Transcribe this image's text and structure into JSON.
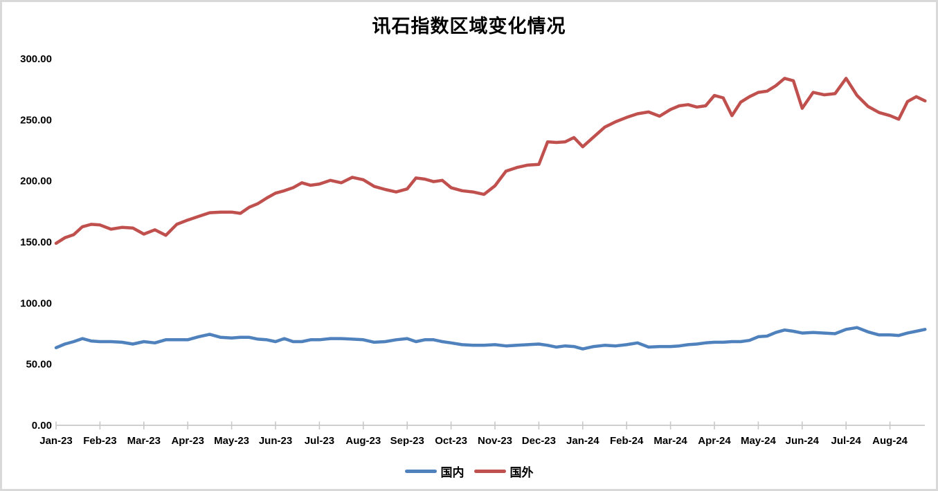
{
  "chart_data": {
    "type": "line",
    "title": "讯石指数区域变化情况",
    "legend_position": "bottom",
    "grid": false,
    "axis_color": "#c8c8c8",
    "y_axis": {
      "min": 0,
      "max": 300,
      "step": 50,
      "tick_labels": [
        "0.00",
        "50.00",
        "100.00",
        "150.00",
        "200.00",
        "250.00",
        "300.00"
      ]
    },
    "x_axis": {
      "tick_labels": [
        "Jan-23",
        "Feb-23",
        "Mar-23",
        "Apr-23",
        "May-23",
        "Jun-23",
        "Jul-23",
        "Aug-23",
        "Sep-23",
        "Oct-23",
        "Nov-23",
        "Dec-23",
        "Jan-24",
        "Feb-24",
        "Mar-24",
        "Apr-24",
        "May-24",
        "Jun-24",
        "Jul-24",
        "Aug-24"
      ],
      "unit": "month"
    },
    "x": [
      0,
      0.2,
      0.4,
      0.6,
      0.8,
      1,
      1.25,
      1.5,
      1.75,
      2,
      2.25,
      2.5,
      2.75,
      3,
      3.25,
      3.5,
      3.75,
      4,
      4.2,
      4.4,
      4.6,
      4.8,
      5,
      5.2,
      5.4,
      5.6,
      5.8,
      6,
      6.25,
      6.5,
      6.75,
      7,
      7.25,
      7.5,
      7.75,
      8,
      8.2,
      8.4,
      8.6,
      8.8,
      9,
      9.25,
      9.5,
      9.75,
      10,
      10.25,
      10.5,
      10.75,
      11,
      11.2,
      11.4,
      11.6,
      11.8,
      12,
      12.25,
      12.5,
      12.75,
      13,
      13.25,
      13.5,
      13.75,
      14,
      14.2,
      14.4,
      14.6,
      14.8,
      15,
      15.2,
      15.4,
      15.6,
      15.8,
      16,
      16.2,
      16.4,
      16.6,
      16.8,
      17,
      17.25,
      17.5,
      17.75,
      18,
      18.25,
      18.5,
      18.75,
      19,
      19.2,
      19.4,
      19.6,
      19.8
    ],
    "series": [
      {
        "name": "国内",
        "color": "#4f81bd",
        "values": [
          63.5,
          66.5,
          68.5,
          71.0,
          69.0,
          68.5,
          68.5,
          68.0,
          66.5,
          68.5,
          67.5,
          70.0,
          70.0,
          70.0,
          72.5,
          74.5,
          72.0,
          71.5,
          72.0,
          72.0,
          70.5,
          70.0,
          68.5,
          71.0,
          68.5,
          68.5,
          70.0,
          70.0,
          71.0,
          71.0,
          70.5,
          70.0,
          68.0,
          68.5,
          70.0,
          71.0,
          68.5,
          70.0,
          70.0,
          68.5,
          67.5,
          66.0,
          65.5,
          65.5,
          66.0,
          65.0,
          65.5,
          66.0,
          66.5,
          65.5,
          64.0,
          65.0,
          64.5,
          62.5,
          64.5,
          65.5,
          65.0,
          66.0,
          67.5,
          64.0,
          64.5,
          64.5,
          65.0,
          66.0,
          66.5,
          67.5,
          68.0,
          68.0,
          68.5,
          68.5,
          69.5,
          72.5,
          73.0,
          76.0,
          78.0,
          77.0,
          75.5,
          76.0,
          75.5,
          75.0,
          78.5,
          80.0,
          76.5,
          74.0,
          74.0,
          73.5,
          75.5,
          77.0,
          78.5
        ]
      },
      {
        "name": "国外",
        "color": "#c0504d",
        "values": [
          149.0,
          153.5,
          156.0,
          162.5,
          164.5,
          164.0,
          160.5,
          162.0,
          161.5,
          156.5,
          160.0,
          155.5,
          164.5,
          168.0,
          171.0,
          174.0,
          174.5,
          174.5,
          173.5,
          178.5,
          181.5,
          186.0,
          190.0,
          192.0,
          194.5,
          198.5,
          196.5,
          197.5,
          200.5,
          198.5,
          203.0,
          201.0,
          195.5,
          193.0,
          191.0,
          193.5,
          202.5,
          201.5,
          199.5,
          200.5,
          194.5,
          192.0,
          191.0,
          189.0,
          196.0,
          208.0,
          211.0,
          213.0,
          213.5,
          232.0,
          231.5,
          232.0,
          235.5,
          228.0,
          236.0,
          244.0,
          248.5,
          252.0,
          255.0,
          256.5,
          253.0,
          258.5,
          261.5,
          262.5,
          260.5,
          261.5,
          270.0,
          268.0,
          253.5,
          264.5,
          269.0,
          272.5,
          273.5,
          278.0,
          284.0,
          282.0,
          259.5,
          272.5,
          270.5,
          271.5,
          284.0,
          270.0,
          261.0,
          256.0,
          253.5,
          250.5,
          265.0,
          269.0,
          265.5
        ]
      }
    ]
  }
}
